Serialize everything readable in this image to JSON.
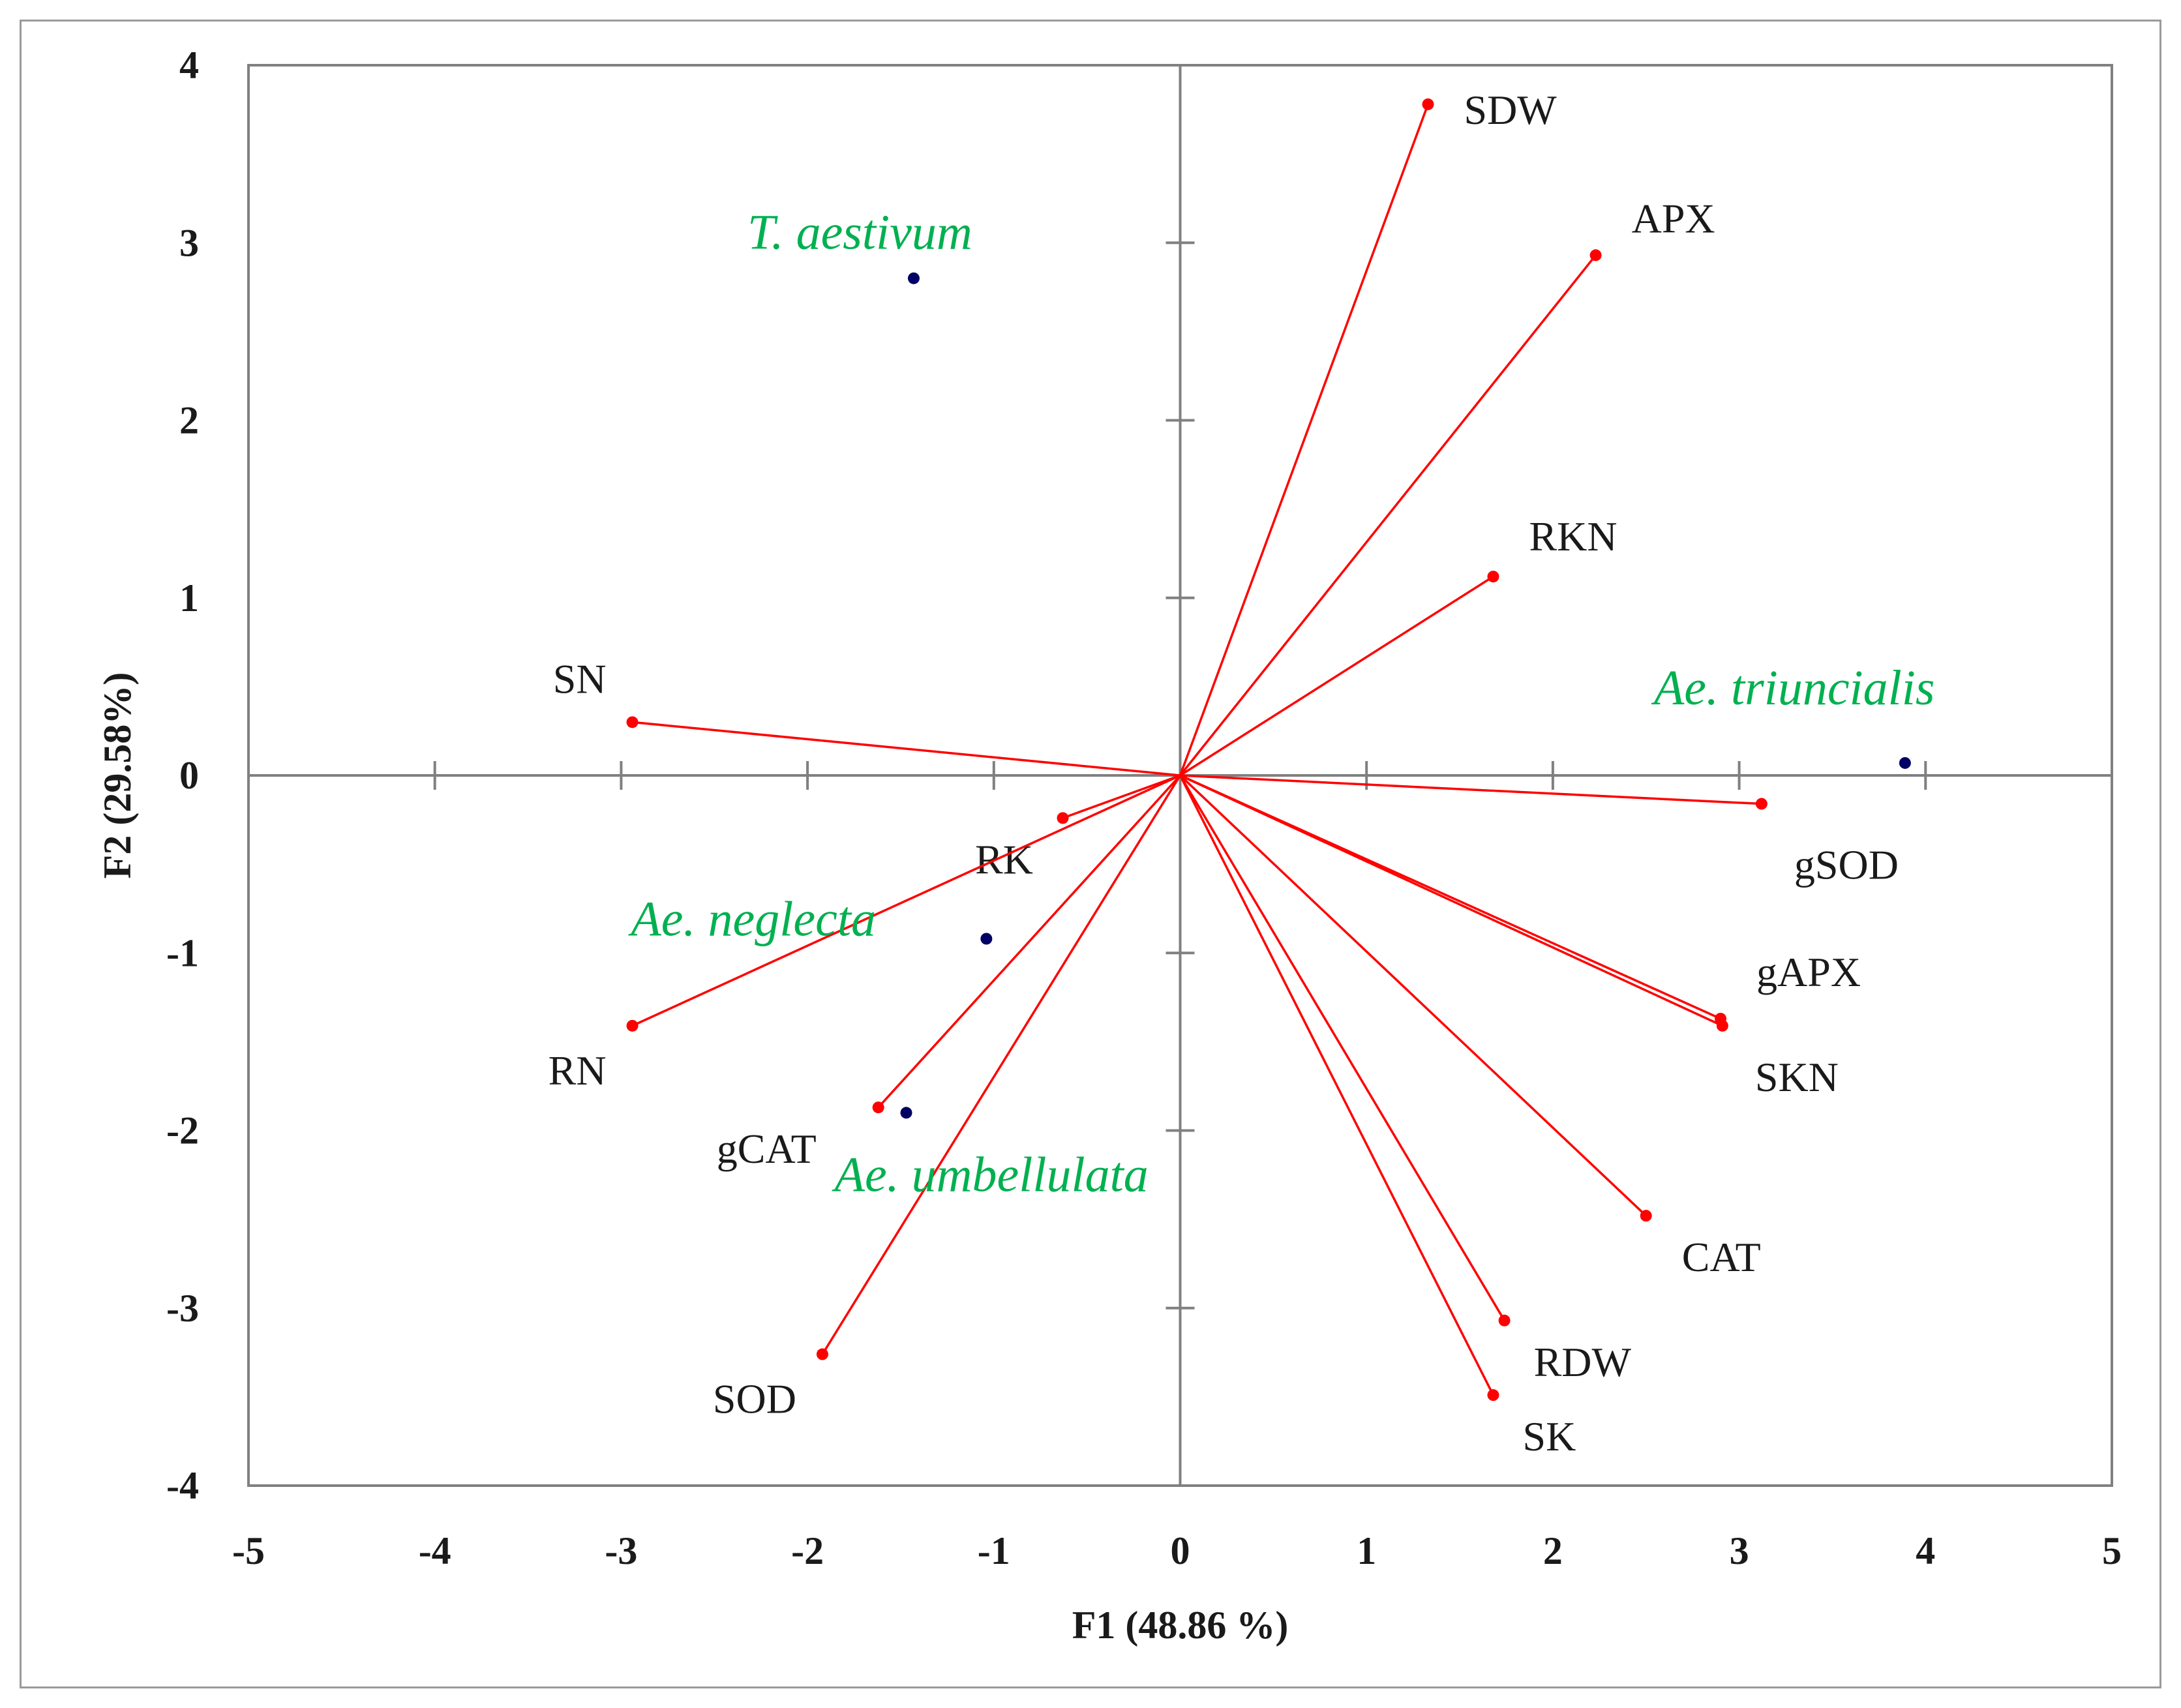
{
  "chart_data": {
    "type": "scatter",
    "subtype": "pca-biplot",
    "title": "",
    "xlabel": "F1 (48.86 %)",
    "ylabel": "F2 (29.58%)",
    "xlim": [
      -5,
      5
    ],
    "ylim": [
      -4,
      4
    ],
    "xticks": [
      -5,
      -4,
      -3,
      -2,
      -1,
      0,
      1,
      2,
      3,
      4,
      5
    ],
    "yticks": [
      -4,
      -3,
      -2,
      -1,
      0,
      1,
      2,
      3,
      4
    ],
    "grid": false,
    "colors": {
      "vectors": "#ff0000",
      "observations": "#000066",
      "observation_labels": "#00b050",
      "axes": "#808080"
    },
    "variables": [
      {
        "name": "SDW",
        "x": 1.33,
        "y": 3.78,
        "anchor": "start"
      },
      {
        "name": "APX",
        "x": 2.23,
        "y": 2.93,
        "anchor": "start"
      },
      {
        "name": "RKN",
        "x": 1.68,
        "y": 1.12,
        "anchor": "start"
      },
      {
        "name": "SN",
        "x": -2.94,
        "y": 0.3,
        "anchor": "end"
      },
      {
        "name": "gSOD",
        "x": 3.12,
        "y": -0.16,
        "anchor": "start"
      },
      {
        "name": "RK",
        "x": -0.63,
        "y": -0.24,
        "anchor": "middle"
      },
      {
        "name": "gAPX",
        "x": 2.9,
        "y": -1.37,
        "anchor": "start"
      },
      {
        "name": "SKN",
        "x": 2.91,
        "y": -1.41,
        "anchor": "start"
      },
      {
        "name": "RN",
        "x": -2.94,
        "y": -1.41,
        "anchor": "end"
      },
      {
        "name": "gCAT",
        "x": -1.62,
        "y": -1.87,
        "anchor": "end"
      },
      {
        "name": "CAT",
        "x": 2.5,
        "y": -2.48,
        "anchor": "start"
      },
      {
        "name": "RDW",
        "x": 1.74,
        "y": -3.07,
        "anchor": "start"
      },
      {
        "name": "SK",
        "x": 1.68,
        "y": -3.49,
        "anchor": "start"
      },
      {
        "name": "SOD",
        "x": -1.92,
        "y": -3.26,
        "anchor": "end"
      }
    ],
    "observations": [
      {
        "name": "T. aestivum",
        "x": -1.43,
        "y": 2.8
      },
      {
        "name": "Ae. triuncialis",
        "x": 3.89,
        "y": 0.07
      },
      {
        "name": "Ae. neglecta",
        "x": -1.04,
        "y": -0.92
      },
      {
        "name": "Ae. umbellulata",
        "x": -1.47,
        "y": -1.9
      }
    ]
  }
}
